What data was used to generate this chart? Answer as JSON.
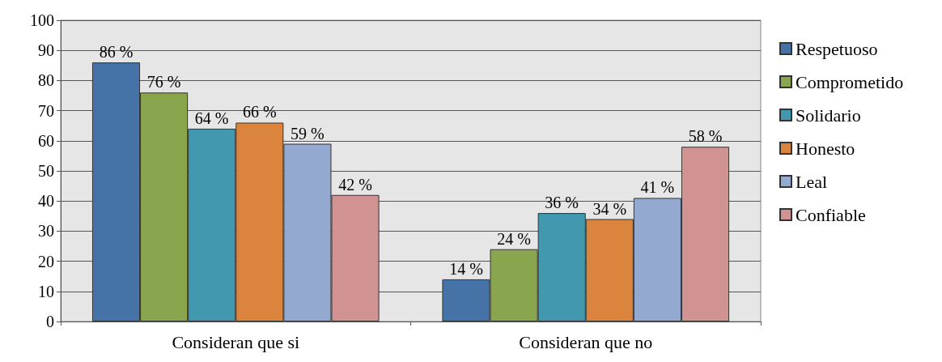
{
  "chart_data": {
    "type": "bar",
    "categories": [
      "Consideran que si",
      "Consideran que no"
    ],
    "series": [
      {
        "name": "Respetuoso",
        "color": "#4572a7",
        "values": [
          86,
          14
        ],
        "value_labels": [
          "86 %",
          "14 %"
        ]
      },
      {
        "name": "Comprometido",
        "color": "#89a54e",
        "values": [
          76,
          24
        ],
        "value_labels": [
          "76 %",
          "24 %"
        ]
      },
      {
        "name": "Solidario",
        "color": "#4198af",
        "values": [
          64,
          36
        ],
        "value_labels": [
          "64 %",
          "36 %"
        ]
      },
      {
        "name": "Honesto",
        "color": "#db843d",
        "values": [
          66,
          34
        ],
        "value_labels": [
          "66 %",
          "34 %"
        ]
      },
      {
        "name": "Leal",
        "color": "#93a9cf",
        "values": [
          59,
          41
        ],
        "value_labels": [
          "59 %",
          "41 %"
        ]
      },
      {
        "name": "Confiable",
        "color": "#d19392",
        "values": [
          42,
          58
        ],
        "value_labels": [
          "42 %",
          "58 %"
        ]
      }
    ],
    "ylim": [
      0,
      100
    ],
    "yticks": [
      0,
      10,
      20,
      30,
      40,
      50,
      60,
      70,
      80,
      90,
      100
    ],
    "grid": "y",
    "legend": "right"
  }
}
